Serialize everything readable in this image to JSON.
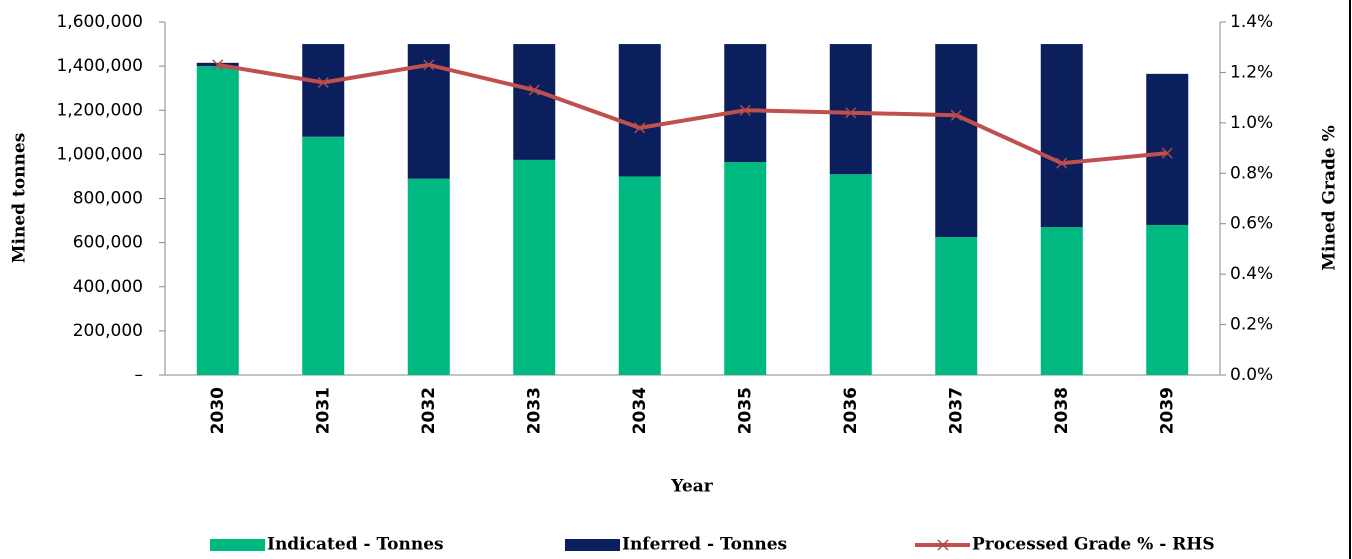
{
  "chart_data": {
    "type": "bar",
    "y_label": "Mined tonnes",
    "y2_label": "Mined Grade %",
    "x_label": "Year",
    "categories": [
      "2030",
      "2031",
      "2032",
      "2033",
      "2034",
      "2035",
      "2036",
      "2037",
      "2038",
      "2039"
    ],
    "series": [
      {
        "name": "Indicated - Tonnes",
        "type": "bar",
        "color": "#00b981",
        "values": [
          1400000,
          1080000,
          890000,
          975000,
          900000,
          965000,
          910000,
          625000,
          670000,
          680000
        ]
      },
      {
        "name": "Inferred - Tonnes",
        "type": "bar",
        "color": "#0a1f5c",
        "values": [
          15000,
          420000,
          610000,
          525000,
          600000,
          535000,
          590000,
          875000,
          830000,
          685000
        ]
      },
      {
        "name": "Processed Grade % - RHS",
        "type": "line",
        "axis": "y2",
        "color": "#c0504d",
        "values": [
          1.23,
          1.16,
          1.23,
          1.13,
          0.98,
          1.05,
          1.04,
          1.03,
          0.84,
          0.88
        ]
      }
    ],
    "stacked": true,
    "ylim": [
      0,
      1600000
    ],
    "yticks": [
      {
        "value": 0,
        "label": "–"
      },
      {
        "value": 200000,
        "label": "200,000"
      },
      {
        "value": 400000,
        "label": "400,000"
      },
      {
        "value": 600000,
        "label": "600,000"
      },
      {
        "value": 800000,
        "label": "800,000"
      },
      {
        "value": 1000000,
        "label": "1,000,000"
      },
      {
        "value": 1200000,
        "label": "1,200,000"
      },
      {
        "value": 1400000,
        "label": "1,400,000"
      },
      {
        "value": 1600000,
        "label": "1,600,000"
      }
    ],
    "y2lim": [
      0,
      1.4
    ],
    "y2ticks": [
      {
        "value": 0,
        "label": "0.0%"
      },
      {
        "value": 0.2,
        "label": "0.2%"
      },
      {
        "value": 0.4,
        "label": "0.4%"
      },
      {
        "value": 0.6,
        "label": "0.6%"
      },
      {
        "value": 0.8,
        "label": "0.8%"
      },
      {
        "value": 1.0,
        "label": "1.0%"
      },
      {
        "value": 1.2,
        "label": "1.2%"
      },
      {
        "value": 1.4,
        "label": "1.4%"
      }
    ],
    "legend": "bottom"
  }
}
